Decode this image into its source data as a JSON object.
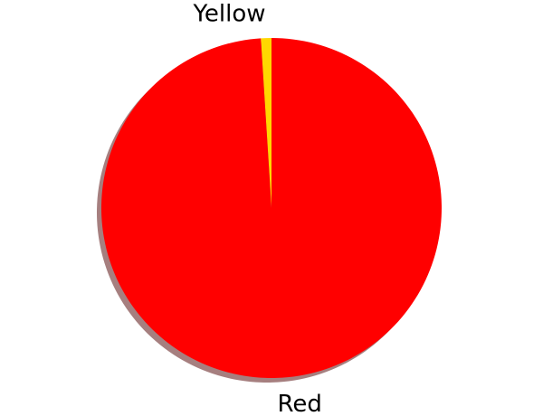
{
  "chart_data": {
    "type": "pie",
    "title": "",
    "start_angle_deg": 90,
    "direction": "counterclockwise",
    "shadow": true,
    "slices": [
      {
        "label": "Yellow",
        "value": 1.0,
        "color": "#ffd700"
      },
      {
        "label": "Red",
        "value": 99.0,
        "color": "#ff0000"
      }
    ]
  }
}
